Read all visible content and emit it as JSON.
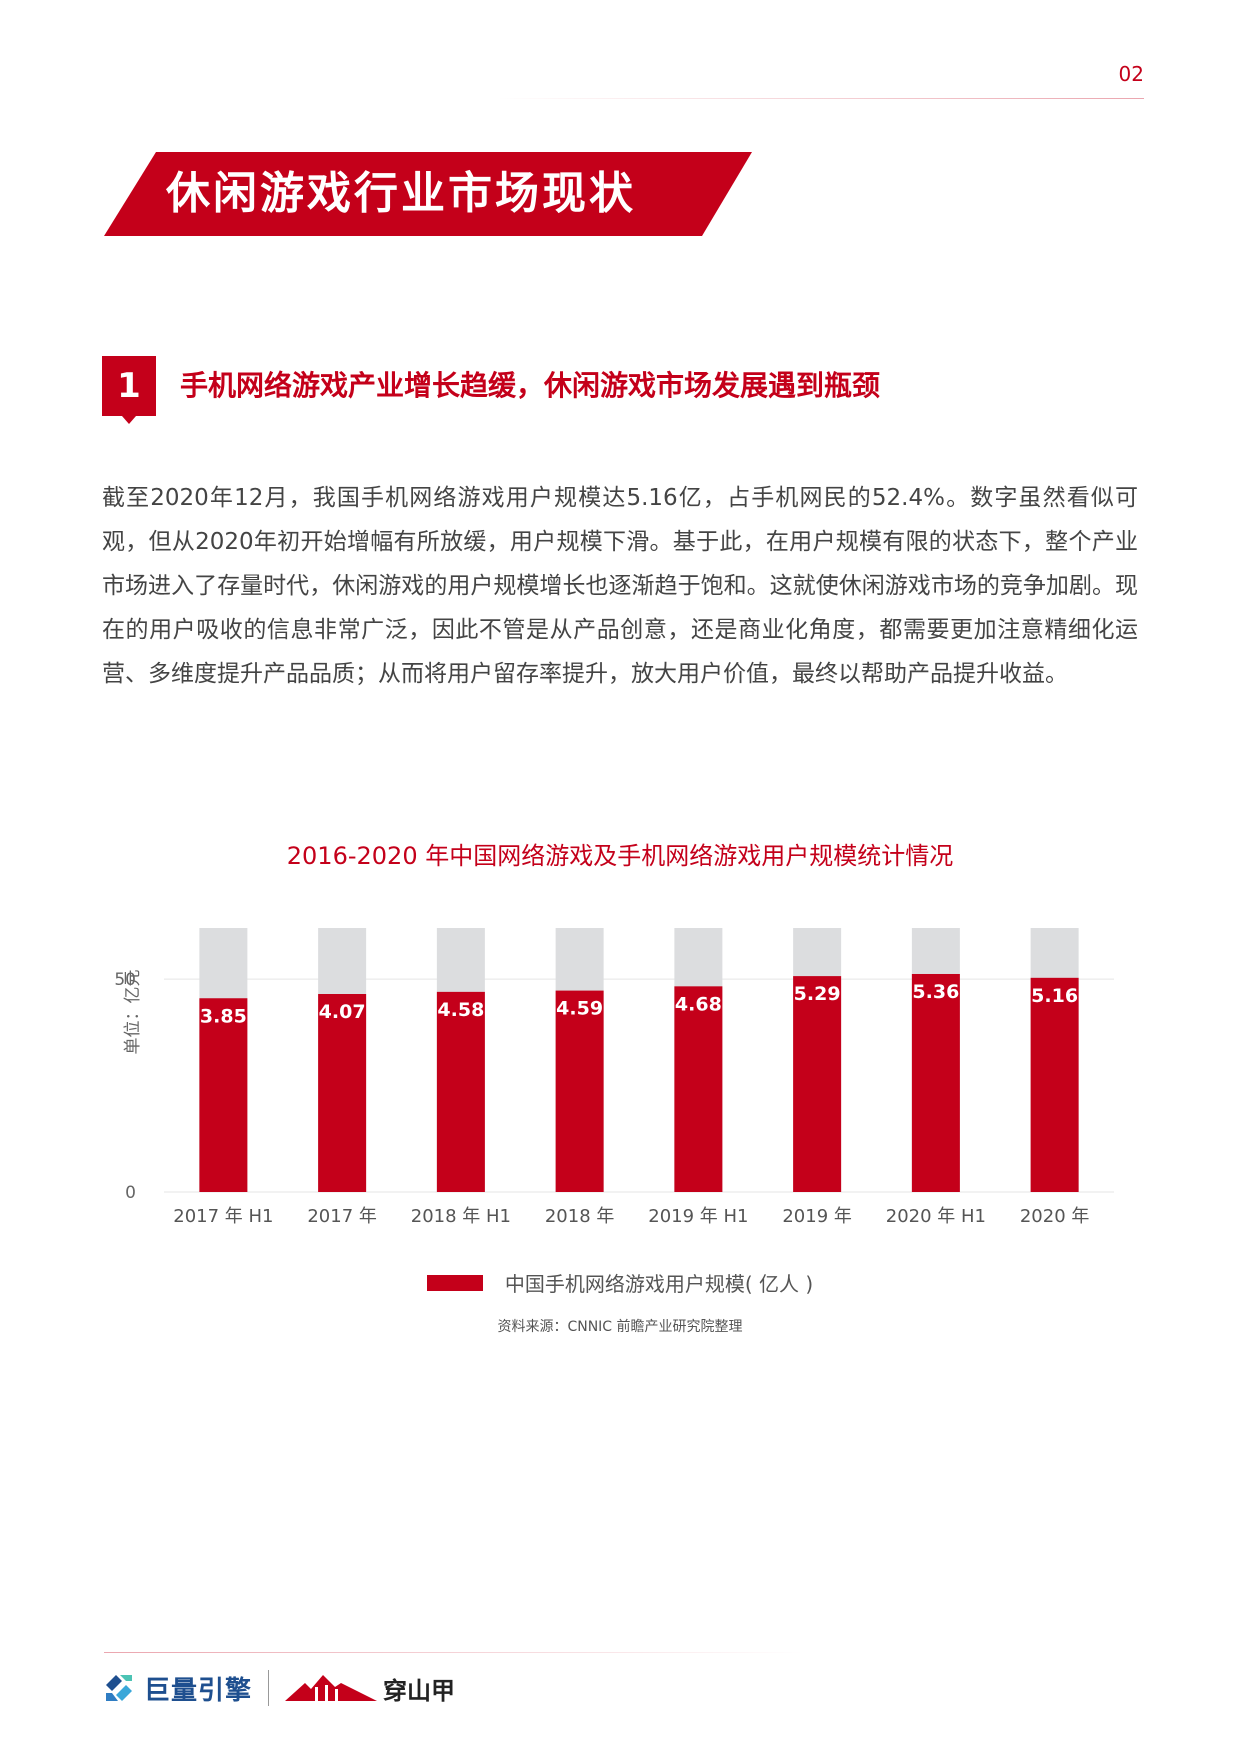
{
  "page_number": "02",
  "banner_title": "休闲游戏行业市场现状",
  "section": {
    "number": "1",
    "heading": "手机网络游戏产业增长趋缓，休闲游戏市场发展遇到瓶颈"
  },
  "body_text": "截至2020年12月，我国手机网络游戏用户规模达5.16亿，占手机网民的52.4%。数字虽然看似可观，但从2020年初开始增幅有所放缓，用户规模下滑。基于此，在用户规模有限的状态下，整个产业市场进入了存量时代，休闲游戏的用户规模增长也逐渐趋于饱和。这就使休闲游戏市场的竞争加剧。现在的用户吸收的信息非常广泛，因此不管是从产品创意，还是商业化角度，都需要更加注意精细化运营、多维度提升产品品质；从而将用户留存率提升，放大用户价值，最终以帮助产品提升收益。",
  "chart_data": {
    "type": "bar",
    "title": "2016-2020 年中国网络游戏及手机网络游戏用户规模统计情况",
    "ylabel": "单位：亿元",
    "xlabel": "",
    "categories": [
      "2017 年 H1",
      "2017 年",
      "2018 年 H1",
      "2018 年",
      "2019 年 H1",
      "2019 年",
      "2020 年 H1",
      "2020 年"
    ],
    "series": [
      {
        "name": "中国手机网络游戏用户规模( 亿人 )",
        "values": [
          3.85,
          4.07,
          4.58,
          4.59,
          4.68,
          5.29,
          5.36,
          5.16
        ]
      }
    ],
    "display_heights": [
      45.5,
      46.5,
      47,
      47.3,
      48.3,
      50.7,
      51.2,
      50.3
    ],
    "background_max": 62,
    "y_ticks": [
      0,
      50
    ],
    "ylim": [
      0,
      62
    ],
    "grid": true,
    "legend_position": "bottom",
    "source": "资料来源：CNNIC 前瞻产业研究院整理",
    "colors": {
      "bar": "#c4001a",
      "background_bar": "#dcdddf"
    }
  },
  "footer": {
    "logo1": "巨量引擎",
    "logo2": "穿山甲"
  },
  "colors": {
    "accent": "#c4001a"
  }
}
